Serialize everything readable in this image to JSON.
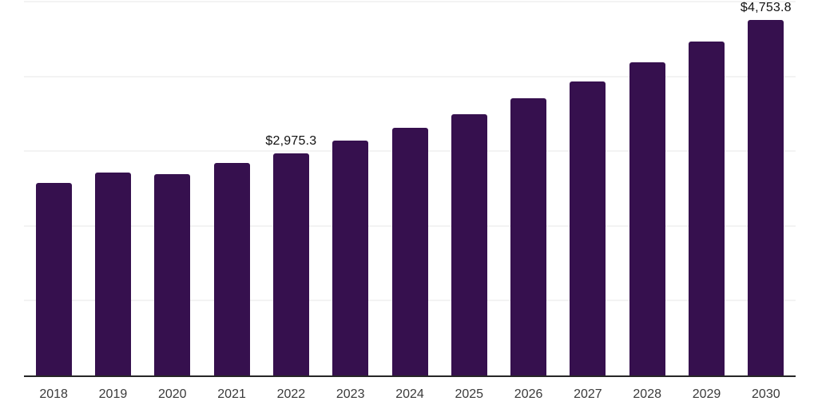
{
  "chart_data": {
    "type": "bar",
    "title": "",
    "xlabel": "",
    "ylabel": "",
    "categories": [
      "2018",
      "2019",
      "2020",
      "2021",
      "2022",
      "2023",
      "2024",
      "2025",
      "2026",
      "2027",
      "2028",
      "2029",
      "2030"
    ],
    "values": [
      2570,
      2715,
      2690,
      2840,
      2975.3,
      3140,
      3315,
      3495,
      3705,
      3930,
      4190,
      4465,
      4753.8
    ],
    "data_labels": [
      {
        "category": "2022",
        "text": "$2,975.3"
      },
      {
        "category": "2030",
        "text": "$4,753.8"
      }
    ],
    "ylim": [
      0,
      5000
    ],
    "gridline_interval": 1000,
    "grid": true,
    "legend": false,
    "y_axis_tick_labels_visible": false,
    "colors": {
      "bar": "#36104E",
      "gridline": "#f3f3f3",
      "axis_line": "#262626",
      "data_label": "#111111",
      "tick_label": "#3a3a3a",
      "background": "#ffffff"
    }
  }
}
